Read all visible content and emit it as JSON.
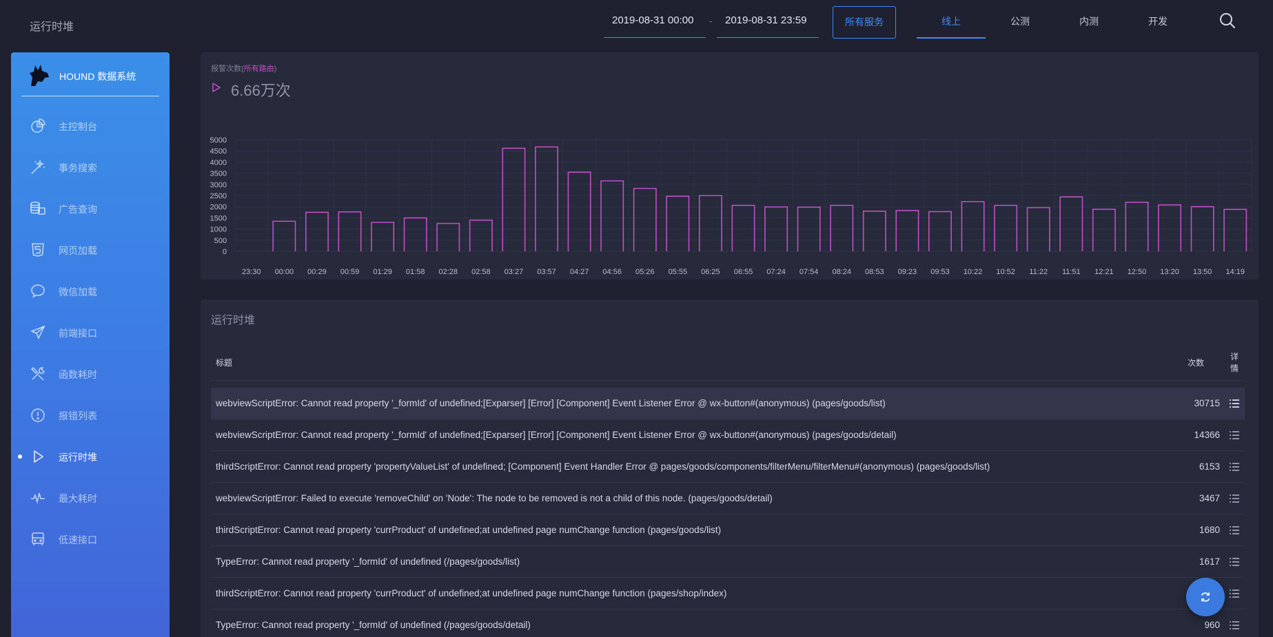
{
  "header": {
    "page_title": "运行时堆",
    "date_start": "2019-08-31 00:00",
    "date_separator": "-",
    "date_end": "2019-08-31 23:59",
    "service_button": "所有服务",
    "env_tabs": [
      {
        "label": "线上",
        "active": true
      },
      {
        "label": "公测",
        "active": false
      },
      {
        "label": "内测",
        "active": false
      },
      {
        "label": "开发",
        "active": false
      }
    ],
    "search_icon": "search-icon"
  },
  "sidebar": {
    "brand_name": "HOUND 数据系统",
    "brand_icon": "wolf-logo-icon",
    "items": [
      {
        "label": "主控制台",
        "icon": "pie-chart-icon",
        "active": false
      },
      {
        "label": "事务搜索",
        "icon": "magic-wand-icon",
        "active": false
      },
      {
        "label": "广告查询",
        "icon": "coins-icon",
        "active": false
      },
      {
        "label": "网页加载",
        "icon": "html5-icon",
        "active": false
      },
      {
        "label": "微信加载",
        "icon": "chat-bubble-icon",
        "active": false
      },
      {
        "label": "前端接口",
        "icon": "paper-plane-icon",
        "active": false
      },
      {
        "label": "函数耗时",
        "icon": "tools-icon",
        "active": false
      },
      {
        "label": "报错列表",
        "icon": "alert-circle-icon",
        "active": false
      },
      {
        "label": "运行时堆",
        "icon": "play-icon",
        "active": true
      },
      {
        "label": "最大耗时",
        "icon": "pulse-icon",
        "active": false
      },
      {
        "label": "低速接口",
        "icon": "bus-icon",
        "active": false
      }
    ]
  },
  "chart": {
    "caption_prefix": "报警次数(",
    "caption_highlight": "所有路由",
    "caption_suffix": ")",
    "total": "6.66万次",
    "accent_color": "#c04ec6"
  },
  "chart_data": {
    "type": "bar",
    "categories": [
      "23:30",
      "00:00",
      "00:29",
      "00:59",
      "01:29",
      "01:58",
      "02:28",
      "02:58",
      "03:27",
      "03:57",
      "04:27",
      "04:56",
      "05:26",
      "05:55",
      "06:25",
      "06:55",
      "07:24",
      "07:54",
      "08:24",
      "08:53",
      "09:23",
      "09:53",
      "10:22",
      "10:52",
      "11:22",
      "11:51",
      "12:21",
      "12:50",
      "13:20",
      "13:50",
      "14:19"
    ],
    "series": [
      {
        "values": [
          0,
          1350,
          1750,
          1770,
          1300,
          1500,
          1250,
          1400,
          4620,
          4680,
          3550,
          3160,
          2820,
          2470,
          2500,
          2060,
          1990,
          1980,
          2060,
          1800,
          1830,
          1780,
          2230,
          2060,
          1960,
          2440,
          1890,
          2200,
          2080,
          2000,
          1880
        ]
      }
    ],
    "yticks": [
      5000,
      4500,
      4000,
      3500,
      3000,
      2500,
      2000,
      1500,
      1000,
      500,
      0
    ],
    "ylim": [
      0,
      5000
    ],
    "xlabel": "",
    "ylabel": "",
    "grid": true,
    "bar_style": "outline",
    "color": "#c04ec6"
  },
  "table": {
    "title": "运行时堆",
    "col_title": "标题",
    "col_count": "次数",
    "col_detail": "详情",
    "rows": [
      {
        "title": "webviewScriptError: Cannot read property '_formId' of undefined;[Exparser] [Error] [Component] Event Listener Error @ wx-button#(anonymous) (pages/goods/list)",
        "count": "30715"
      },
      {
        "title": "webviewScriptError: Cannot read property '_formId' of undefined;[Exparser] [Error] [Component] Event Listener Error @ wx-button#(anonymous) (pages/goods/detail)",
        "count": "14366"
      },
      {
        "title": "thirdScriptError: Cannot read property 'propertyValueList' of undefined; [Component] Event Handler Error @ pages/goods/components/filterMenu/filterMenu#(anonymous) (pages/goods/list)",
        "count": "6153"
      },
      {
        "title": "webviewScriptError: Failed to execute 'removeChild' on 'Node': The node to be removed is not a child of this node. (pages/goods/detail)",
        "count": "3467"
      },
      {
        "title": "thirdScriptError: Cannot read property 'currProduct' of undefined;at undefined page numChange function (pages/goods/list)",
        "count": "1680"
      },
      {
        "title": "TypeError: Cannot read property '_formId' of undefined (/pages/goods/list)",
        "count": "1617"
      },
      {
        "title": "thirdScriptError: Cannot read property 'currProduct' of undefined;at undefined page numChange function (pages/shop/index)",
        "count": ""
      },
      {
        "title": "TypeError: Cannot read property '_formId' of undefined (/pages/goods/detail)",
        "count": "960"
      }
    ],
    "detail_icon": "list-icon"
  },
  "fab": {
    "icon": "refresh-icon"
  }
}
